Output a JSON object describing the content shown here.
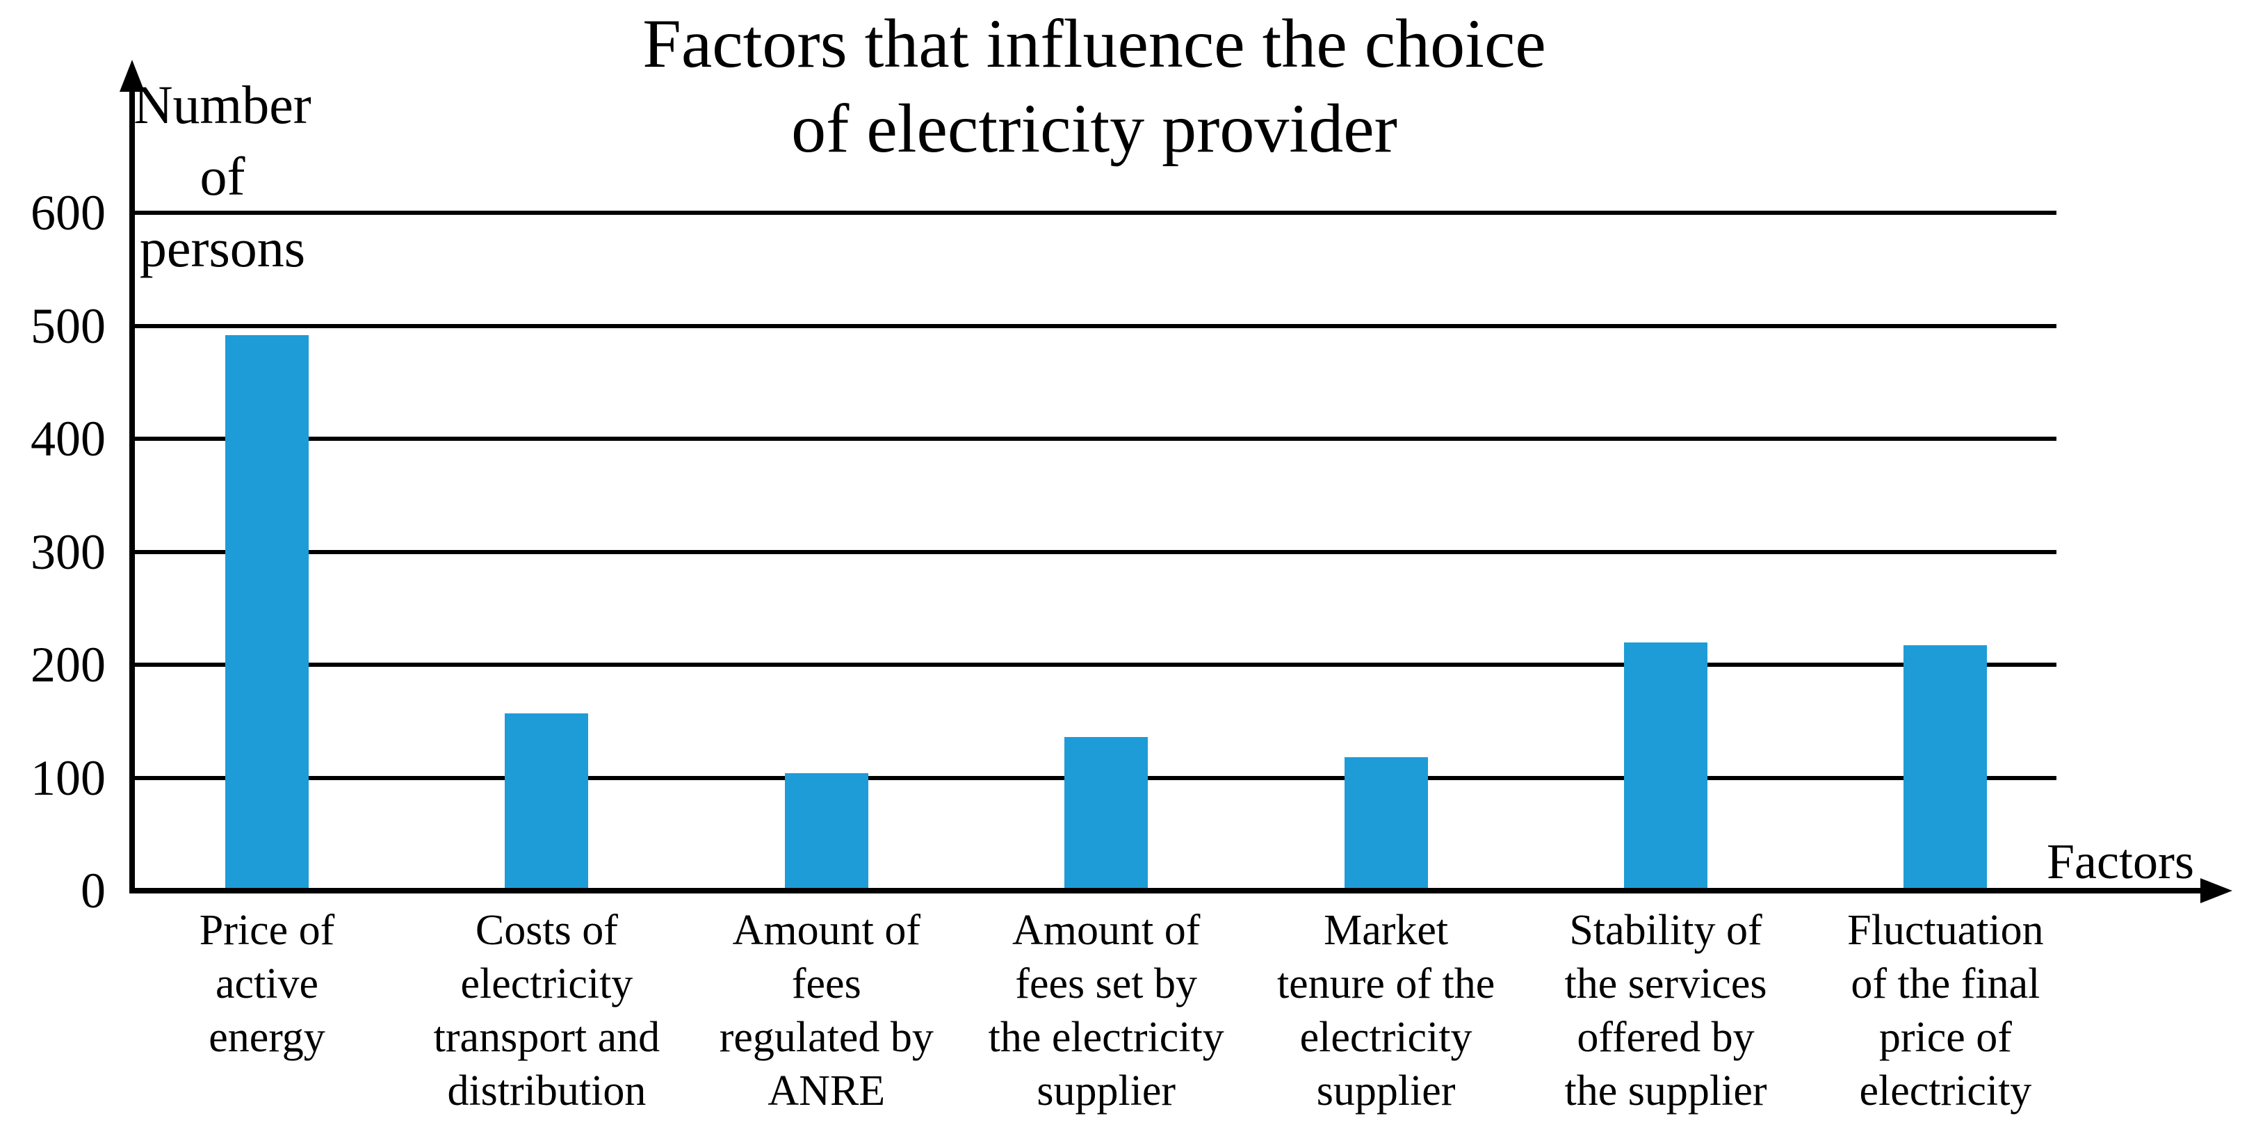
{
  "chart_data": {
    "type": "bar",
    "title": "Factors that influence the choice\nof electricity provider",
    "ylabel": "Number of\npersons",
    "xlabel": "Factors",
    "categories": [
      "Price of\nactive\nenergy",
      "Costs of\nelectricity\ntransport and\ndistribution",
      "Amount of\nfees\nregulated by\nANRE",
      "Amount of\nfees set by\nthe electricity\nsupplier",
      "Market\ntenure of the\nelectricity\nsupplier",
      "Stability of\nthe services\noffered by\nthe supplier",
      "Fluctuation\nof the final\nprice of\nelectricity"
    ],
    "values": [
      492,
      157,
      104,
      136,
      118,
      220,
      217
    ],
    "y_ticks": [
      0,
      100,
      200,
      300,
      400,
      500,
      600
    ],
    "ylim": [
      0,
      600
    ],
    "grid": true,
    "legend": "none",
    "bar_color": "#1E9CD7",
    "axis_color": "#000000"
  }
}
